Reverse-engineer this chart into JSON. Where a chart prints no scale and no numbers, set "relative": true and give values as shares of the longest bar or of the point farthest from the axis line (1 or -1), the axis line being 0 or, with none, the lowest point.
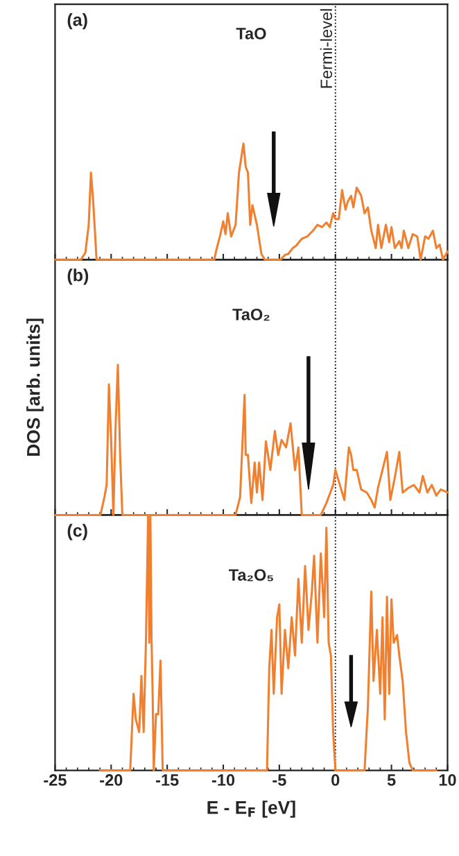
{
  "chart_data": [
    {
      "type": "line",
      "relative": true,
      "annotations": [
        "(a)",
        "TaO"
      ],
      "xlim": [
        -25,
        10
      ],
      "xticks": [
        -25,
        -20,
        -15,
        -10,
        -5,
        0,
        5,
        10
      ],
      "tick_labels": false,
      "ref_lines": [
        {
          "axis": "x",
          "value": 0,
          "label": "Fermi-level",
          "color": "#000000",
          "line_style": "dotted"
        }
      ],
      "series": [
        {
          "color": "#f08030",
          "x": [
            -25,
            -22.7,
            -22.3,
            -22.0,
            -21.8,
            -21.6,
            -21.3,
            -10.8,
            -10.6,
            -10.3,
            -10.0,
            -9.8,
            -9.6,
            -9.3,
            -8.9,
            -8.6,
            -8.2,
            -8.0,
            -7.8,
            -7.6,
            -7.4,
            -7.0,
            -6.6,
            -6.3,
            -4.9,
            -4.5,
            -4.2,
            -3.8,
            -3.5,
            -3.0,
            -2.5,
            -2.0,
            -1.6,
            -1.2,
            -0.8,
            -0.5,
            -0.2,
            0,
            0.3,
            0.6,
            0.9,
            1.1,
            1.4,
            1.6,
            1.9,
            2.3,
            2.6,
            2.9,
            3.2,
            3.6,
            3.8,
            4.1,
            4.5,
            4.8,
            5.0,
            5.3,
            5.7,
            5.9,
            6.1,
            6.5,
            6.9,
            7.3,
            7.6,
            8.0,
            8.3,
            8.7,
            9.0,
            9.3,
            9.6,
            10
          ],
          "values": [
            0,
            0,
            0.06,
            0.3,
            0.75,
            0.5,
            0,
            0,
            0.09,
            0.2,
            0.33,
            0.22,
            0.4,
            0.2,
            0.3,
            0.75,
            1.0,
            0.8,
            0.75,
            0.3,
            0.47,
            0.3,
            0.05,
            0,
            0,
            0.04,
            0.05,
            0.1,
            0.12,
            0.18,
            0.2,
            0.25,
            0.3,
            0.28,
            0.32,
            0.28,
            0.4,
            0.35,
            0.35,
            0.6,
            0.43,
            0.5,
            0.55,
            0.45,
            0.62,
            0.55,
            0.4,
            0.45,
            0.25,
            0.1,
            0.3,
            0.1,
            0.3,
            0.15,
            0.28,
            0.1,
            0.16,
            0.1,
            0.25,
            0.1,
            0.22,
            0.2,
            0,
            0.2,
            0.18,
            0.25,
            0.1,
            0.13,
            0,
            0.07
          ]
        }
      ]
    },
    {
      "type": "line",
      "relative": true,
      "annotations": [
        "(b)",
        "TaO₂"
      ],
      "xlim": [
        -25,
        10
      ],
      "xticks": [
        -25,
        -20,
        -15,
        -10,
        -5,
        0,
        5,
        10
      ],
      "tick_labels": false,
      "ylabel": "DOS [arb. units]",
      "ref_lines": [
        {
          "axis": "x",
          "value": 0,
          "color": "#000000",
          "line_style": "dotted"
        }
      ],
      "series": [
        {
          "color": "#f08030",
          "x": [
            -25,
            -20.95,
            -20.6,
            -20.4,
            -20.2,
            -20.0,
            -19.8,
            -19.6,
            -19.4,
            -19.2,
            -19.0,
            -8.9,
            -8.5,
            -8.1,
            -8.0,
            -7.8,
            -7.5,
            -7.2,
            -7.0,
            -6.8,
            -6.5,
            -6.2,
            -5.8,
            -5.4,
            -5.1,
            -4.8,
            -4.4,
            -4.0,
            -3.6,
            -3.3,
            -3.0,
            -1.3,
            -0.8,
            -0.45,
            -0.2,
            0,
            0.4,
            0.8,
            1.2,
            1.4,
            1.6,
            1.9,
            2.3,
            2.8,
            3.2,
            3.5,
            3.8,
            4.2,
            4.6,
            4.9,
            5.3,
            5.7,
            6.0,
            6.5,
            7.0,
            7.5,
            7.8,
            8.2,
            8.6,
            9.0,
            9.4,
            10
          ],
          "values": [
            0,
            0,
            0.12,
            0.2,
            0.87,
            0.5,
            0,
            0.6,
            1.0,
            0.4,
            0,
            0,
            0.12,
            0.8,
            0.4,
            0.4,
            0.08,
            0.35,
            0.15,
            0.35,
            0.1,
            0.49,
            0.3,
            0.56,
            0.4,
            0.5,
            0.45,
            0.61,
            0.3,
            0.45,
            0,
            0,
            0.08,
            0.15,
            0.2,
            0.3,
            0.2,
            0.1,
            0.45,
            0.4,
            0.3,
            0.3,
            0.17,
            0.15,
            0.1,
            0.05,
            0.18,
            0.3,
            0.42,
            0.1,
            0.25,
            0.42,
            0.15,
            0.18,
            0.2,
            0.15,
            0.26,
            0.15,
            0.2,
            0.13,
            0.17,
            0.15
          ]
        }
      ]
    },
    {
      "type": "line",
      "relative": true,
      "annotations": [
        "(c)",
        "Ta₂O₅"
      ],
      "xlim": [
        -25,
        10
      ],
      "xticks": [
        -25,
        -20,
        -15,
        -10,
        -5,
        0,
        5,
        10
      ],
      "tick_labels": "x",
      "xlabel": "E - E$_{F}$ [eV]",
      "ref_lines": [
        {
          "axis": "x",
          "value": 0,
          "color": "#000000",
          "line_style": "dotted"
        }
      ],
      "series": [
        {
          "color": "#f08030",
          "x": [
            -21,
            -18.3,
            -18.1,
            -18.0,
            -17.8,
            -17.5,
            -17.3,
            -17.1,
            -16.9,
            -16.7,
            -16.6,
            -16.5,
            -16.4,
            -16.3,
            -16.2,
            -16.0,
            -15.8,
            -15.6,
            -15.4,
            -6.1,
            -5.9,
            -5.7,
            -5.5,
            -5.2,
            -5.0,
            -4.8,
            -4.5,
            -4.2,
            -3.9,
            -3.6,
            -3.3,
            -3.0,
            -2.7,
            -2.4,
            -2.1,
            -1.9,
            -1.6,
            -1.3,
            -1.0,
            -0.8,
            -0.6,
            -0.4,
            -0.2,
            0,
            2.6,
            2.9,
            3.0,
            3.2,
            3.4,
            3.7,
            4.0,
            4.2,
            4.4,
            4.6,
            4.8,
            5.0,
            5.2,
            5.5,
            5.7,
            6.0,
            6.3,
            6.6,
            6.9,
            9
          ],
          "values": [
            0,
            0,
            0.2,
            0.3,
            0.2,
            0.15,
            0.37,
            0.15,
            0.5,
            1.0,
            0.5,
            1.0,
            0.52,
            0.3,
            0,
            0.22,
            0.22,
            0.43,
            0,
            0,
            0.4,
            0.55,
            0.3,
            0.6,
            0.65,
            0.3,
            0.55,
            0.4,
            0.6,
            0.45,
            0.75,
            0.5,
            0.8,
            0.55,
            0.7,
            0.84,
            0.5,
            0.85,
            0.6,
            0.95,
            0.5,
            0.45,
            0.15,
            0,
            0,
            0.25,
            0.4,
            0.7,
            0.35,
            0.55,
            0.3,
            0.6,
            0.2,
            0.68,
            0.3,
            0.67,
            0.5,
            0.53,
            0.45,
            0.35,
            0.15,
            0.03,
            0,
            0
          ]
        }
      ]
    }
  ]
}
